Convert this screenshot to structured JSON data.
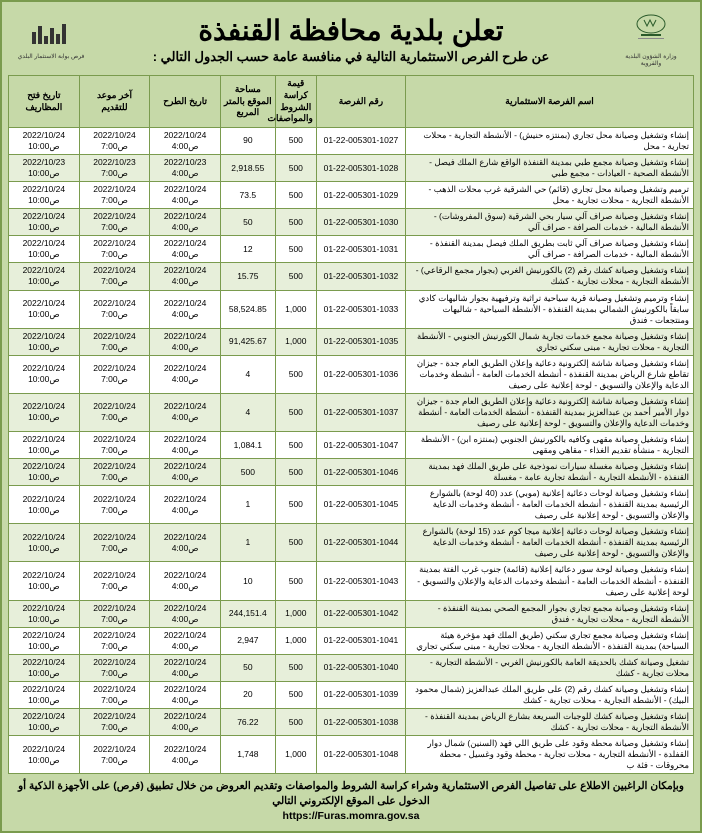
{
  "header": {
    "main_title": "تعلن بلدية محافظة القنفذة",
    "sub_title": "عن طرح الفرص الاستثمارية التالية في منافسة عامة حسب الجدول التالي :",
    "right_logo_caption": "وزارة الشؤون البلدية والقروية",
    "left_logo_caption": "فرص\nبوابة الاستثمار البلدي"
  },
  "columns": [
    "اسم الفرصة الاستثمارية",
    "رقم الفرصة",
    "قيمة كراسة الشروط والمواصفات",
    "مساحة الموقع بالمتر المربع",
    "تاريخ الطرح",
    "آخر موعد للتقديم",
    "تاريخ فتح المظاريف"
  ],
  "common": {
    "date1": "2022/10/24",
    "t_open": "ص4:00",
    "t_last": "ص7:00",
    "t_env": "ص10:00"
  },
  "rows": [
    {
      "name": "إنشاء وتشغيل وصيانة محل تجاري (بمنتزه حنيش) - الأنشطة التجارية - محلات تجارية - محل",
      "num": "01-22-005301-1027",
      "price": "500",
      "area": "90",
      "d": "2022/10/24"
    },
    {
      "name": "إنشاء وتشغيل وصيانة مجمع طبي بمدينة القنفذة الواقع شارع الملك فيصل - الأنشطة الصحية - العيادات - مجمع طبي",
      "num": "01-22-005301-1028",
      "price": "500",
      "area": "2,918.55",
      "d": "2022/10/23",
      "special_env": "2022/10/23"
    },
    {
      "name": "ترميم وتشغيل وصيانة محل تجاري (قائم) حي الشرقية غرب محلات الذهب - الأنشطة التجارية - محلات تجارية - محل",
      "num": "01-22-005301-1029",
      "price": "500",
      "area": "73.5",
      "d": "2022/10/24"
    },
    {
      "name": "إنشاء وتشغيل وصيانة صراف آلي سيار بحي الشرقية (سوق المفروشات) - الأنشطة المالية - خدمات الصرافة - صراف آلي",
      "num": "01-22-005301-1030",
      "price": "500",
      "area": "50",
      "d": "2022/10/24"
    },
    {
      "name": "إنشاء وتشغيل وصيانة صراف آلي ثابت بطريق الملك فيصل بمدينة القنفذة - الأنشطة المالية - خدمات الصرافة - صراف آلي",
      "num": "01-22-005301-1031",
      "price": "500",
      "area": "12",
      "d": "2022/10/24"
    },
    {
      "name": "إنشاء وتشغيل وصيانة كشك رقم (2) بالكورنيش الغربي (بجوار مجمع الرقاعي) - الأنشطة التجارية - محلات تجارية - كشك",
      "num": "01-22-005301-1032",
      "price": "500",
      "area": "15.75",
      "d": "2022/10/24"
    },
    {
      "name": "إنشاء وترميم وتشغيل وصيانة قرية سياحية تراثية وترفيهية بجوار شاليهات كادي سابقاً بالكورنيش الشمالي بمدينة القنفذة - الأنشطة السياحية - شاليهات ومنتجعات - فندق",
      "num": "01-22-005301-1033",
      "price": "1,000",
      "area": "58,524.85",
      "d": "2022/10/24"
    },
    {
      "name": "إنشاء وتشغيل وصيانة مجمع خدمات تجارية شمال الكورنيش الجنوبي - الأنشطة التجارية - محلات تجارية - مبنى سكني تجاري",
      "num": "01-22-005301-1035",
      "price": "1,000",
      "area": "91,425.67",
      "d": "2022/10/24"
    },
    {
      "name": "إنشاء وتشغيل وصيانة شاشة إلكترونية دعائية وإعلان الطريق العام جدة - جيزان تقاطع شارع الرياض بمدينة القنفذة - أنشطة الخدمات العامة - أنشطة وخدمات الدعاية والإعلان والتسويق - لوحة إعلانية على رصيف",
      "num": "01-22-005301-1036",
      "price": "500",
      "area": "4",
      "d": "2022/10/24"
    },
    {
      "name": "إنشاء وتشغيل وصيانة شاشة إلكترونية دعائية وإعلان الطريق العام جدة - جيزان دوار الأمير أحمد بن عبدالعزيز بمدينة القنفذة - أنشطة الخدمات العامة - أنشطة وخدمات الدعاية والإعلان والتسويق - لوحة إعلانية على رصيف",
      "num": "01-22-005301-1037",
      "price": "500",
      "area": "4",
      "d": "2022/10/24"
    },
    {
      "name": "إنشاء وتشغيل وصيانة مقهى وكافيه بالكورنيش الجنوبي (بمنتزه ابن) - الأنشطة التجارية - منشأة تقديم الغذاء - مقاهي ومقهى",
      "num": "01-22-005301-1047",
      "price": "500",
      "area": "1,084.1",
      "d": "2022/10/24"
    },
    {
      "name": "إنشاء وتشغيل وصيانة مغسلة سيارات نموذجية على طريق الملك فهد بمدينة القنفذة - الأنشطة التجارية - أنشطة تجارية عامة - مغسلة",
      "num": "01-22-005301-1046",
      "price": "500",
      "area": "500",
      "d": "2022/10/24"
    },
    {
      "name": "إنشاء وتشغيل وصيانة لوحات دعائية إعلانية (موبي) عدد (40 لوحة) بالشوارع الرئيسية بمدينة القنفذة - أنشطة الخدمات العامة - أنشطة وخدمات الدعاية والإعلان والتسويق - لوحة إعلانية على رصيف",
      "num": "01-22-005301-1045",
      "price": "500",
      "area": "1",
      "d": "2022/10/24"
    },
    {
      "name": "إنشاء وتشغيل وصيانة لوحات دعائية إعلانية ميجا كوم عدد (15 لوحة) بالشوارع الرئيسية بمدينة القنفذة - أنشطة الخدمات العامة - أنشطة وخدمات الدعاية والإعلان والتسويق - لوحة إعلانية على رصيف",
      "num": "01-22-005301-1044",
      "price": "500",
      "area": "1",
      "d": "2022/10/24"
    },
    {
      "name": "إنشاء وتشغيل وصيانة لوحة سور دعائية إعلانية (قائمة) جنوب غرب الفتة بمدينة القنفذة - أنشطة الخدمات العامة - أنشطة وخدمات الدعاية والإعلان والتسويق - لوحة إعلانية على رصيف",
      "num": "01-22-005301-1043",
      "price": "500",
      "area": "10",
      "d": "2022/10/24"
    },
    {
      "name": "إنشاء وتشغيل وصيانة مجمع تجاري بجوار المجمع الصحي بمدينة القنفذة - الأنشطة التجارية - محلات تجارية - فندق",
      "num": "01-22-005301-1042",
      "price": "1,000",
      "area": "244,151.4",
      "d": "2022/10/24"
    },
    {
      "name": "إنشاء وتشغيل وصيانة مجمع تجاري سكني (طريق الملك فهد مؤخرة هيئة السياحة) بمدينة القنفذة - الأنشطة التجارية - محلات تجارية - مبنى سكني تجاري",
      "num": "01-22-005301-1041",
      "price": "1,000",
      "area": "2,947",
      "d": "2022/10/24"
    },
    {
      "name": "تشغيل وصيانة كشك بالحديقة العامة بالكورنيش الغربي - الأنشطة التجارية - محلات تجارية - كشك",
      "num": "01-22-005301-1040",
      "price": "500",
      "area": "50",
      "d": "2022/10/24"
    },
    {
      "name": "إنشاء وتشغيل وصيانة كشك رقم (2) على طريق الملك عبدالعزيز (شمال محمود البيك) - الأنشطة التجارية - محلات تجارية - كشك",
      "num": "01-22-005301-1039",
      "price": "500",
      "area": "20",
      "d": "2022/10/24"
    },
    {
      "name": "إنشاء وتشغيل وصيانة كشك للوجبات السريعة بشارع الرياض بمدينة القنفذة - الأنشطة التجارية - محلات تجارية - كشك",
      "num": "01-22-005301-1038",
      "price": "500",
      "area": "76.22",
      "d": "2022/10/24"
    },
    {
      "name": "إنشاء وتشغيل وصيانة محطة وقود على طريق اللي فهد (السنين) شمال دوار القفلدة - الأنشطة التجارية - محلات تجارية - محطة وقود وغسيل - محطة محروقات - فئة ب",
      "num": "01-22-005301-1048",
      "price": "1,000",
      "area": "1,748",
      "d": "2022/10/24"
    }
  ],
  "footer": {
    "text": "وبإمكان الراغبين الاطلاع على تفاصيل الفرص الاستثمارية وشراء كراسة الشروط والمواصفات وتقديم العروض من خلال تطبيق (فرص) على الأجهزة الذكية أو الدخول على الموقع الإلكتروني التالي",
    "url": "https://Furas.momra.gov.sa"
  },
  "style": {
    "border_color": "#7a9b4e",
    "header_bg": "#c6d9a8",
    "row_even_bg": "#e7efda",
    "row_odd_bg": "#ffffff"
  }
}
